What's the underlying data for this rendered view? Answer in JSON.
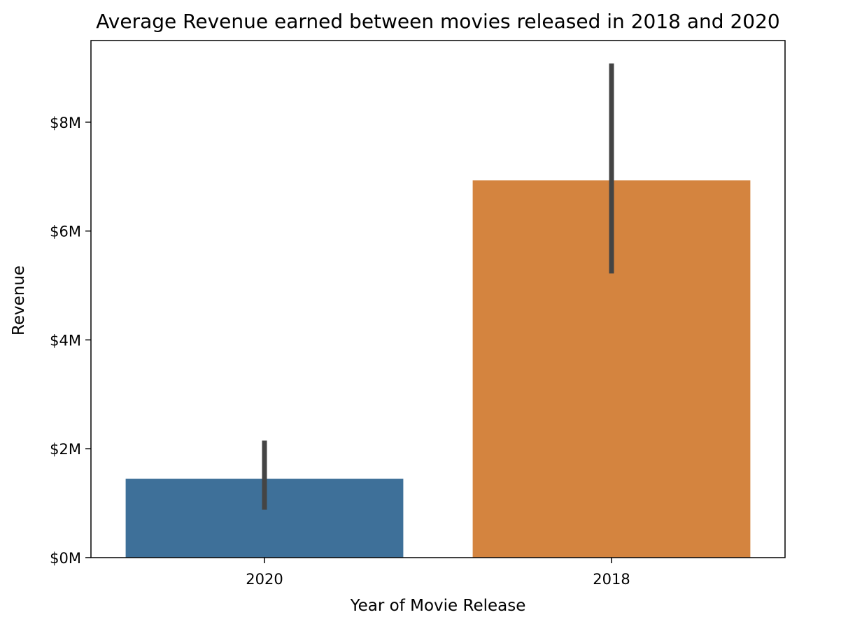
{
  "chart_data": {
    "type": "bar",
    "title": "Average Revenue earned between movies released in 2018 and 2020",
    "xlabel": "Year of Movie Release",
    "ylabel": "Revenue",
    "categories": [
      "2020",
      "2018"
    ],
    "values": [
      1450000,
      6930000
    ],
    "error_low": [
      880000,
      5220000
    ],
    "error_high": [
      2150000,
      9080000
    ],
    "ylim": [
      0,
      9500000
    ],
    "yticks": [
      0,
      2000000,
      4000000,
      6000000,
      8000000
    ],
    "ytick_labels": [
      "$0M",
      "$2M",
      "$4M",
      "$6M",
      "$8M"
    ],
    "colors": [
      "#3e7099",
      "#d4843f"
    ],
    "error_color": "#444444",
    "grid": false,
    "legend": "none"
  }
}
